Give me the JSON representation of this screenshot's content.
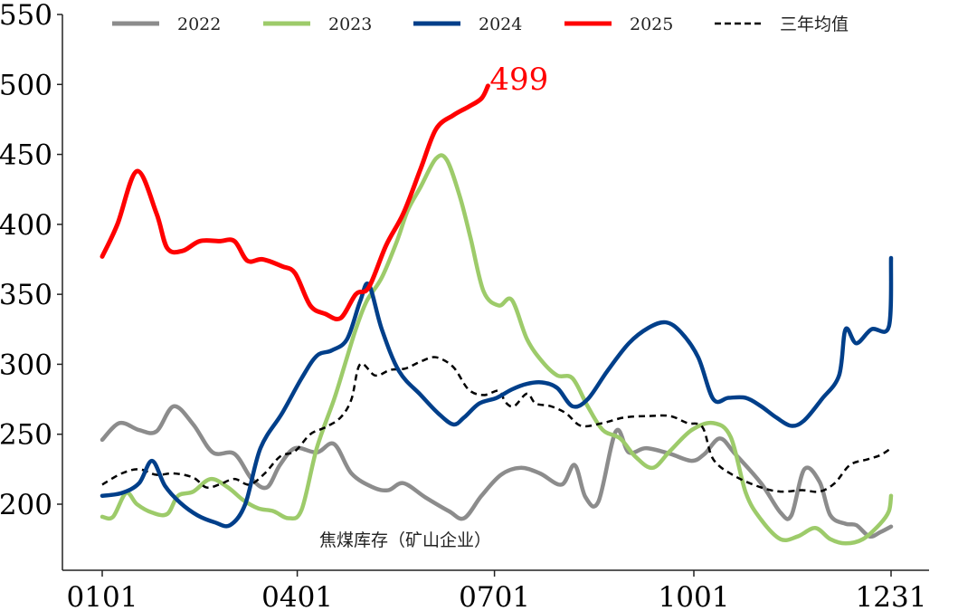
{
  "chart_data": {
    "type": "line",
    "title": "",
    "annotation": "焦煤库存（矿山企业）",
    "xlabel": "",
    "ylabel": "",
    "ylim": [
      150,
      550
    ],
    "yticks": [
      200,
      250,
      300,
      350,
      400,
      450,
      500,
      550
    ],
    "xticks": [
      "0101",
      "0401",
      "0701",
      "1001",
      "1231"
    ],
    "grid": false,
    "legend_position": "top",
    "last_value_label": {
      "series": "2025",
      "text": "499"
    },
    "series": [
      {
        "name": "2022",
        "color": "#8c8c8c",
        "dashed": false,
        "width": 4.5,
        "points": [
          [
            "0101",
            246
          ],
          [
            "0109",
            258
          ],
          [
            "0118",
            253
          ],
          [
            "0126",
            252
          ],
          [
            "0203",
            270
          ],
          [
            "0212",
            257
          ],
          [
            "0221",
            237
          ],
          [
            "0303",
            236
          ],
          [
            "0311",
            218
          ],
          [
            "0318",
            212
          ],
          [
            "0324",
            228
          ],
          [
            "0331",
            240
          ],
          [
            "0410",
            237
          ],
          [
            "0418",
            243
          ],
          [
            "0426",
            222
          ],
          [
            "0506",
            212
          ],
          [
            "0513",
            210
          ],
          [
            "0520",
            215
          ],
          [
            "0530",
            205
          ],
          [
            "0610",
            195
          ],
          [
            "0617",
            190
          ],
          [
            "0625",
            206
          ],
          [
            "0704",
            221
          ],
          [
            "0713",
            226
          ],
          [
            "0722",
            222
          ],
          [
            "0801",
            214
          ],
          [
            "0807",
            228
          ],
          [
            "0812",
            205
          ],
          [
            "0818",
            202
          ],
          [
            "0826",
            252
          ],
          [
            "0901",
            237
          ],
          [
            "0909",
            240
          ],
          [
            "0920",
            236
          ],
          [
            "0930",
            231
          ],
          [
            "1006",
            236
          ],
          [
            "1013",
            247
          ],
          [
            "1020",
            236
          ],
          [
            "1101",
            215
          ],
          [
            "1110",
            194
          ],
          [
            "1115",
            192
          ],
          [
            "1121",
            225
          ],
          [
            "1128",
            216
          ],
          [
            "1203",
            192
          ],
          [
            "1210",
            186
          ],
          [
            "1215",
            185
          ],
          [
            "1221",
            177
          ],
          [
            "1226",
            180
          ],
          [
            "1231",
            184
          ]
        ]
      },
      {
        "name": "2023",
        "color": "#9dcb6a",
        "dashed": false,
        "width": 4.5,
        "points": [
          [
            "0101",
            191
          ],
          [
            "0106",
            191
          ],
          [
            "0112",
            208
          ],
          [
            "0117",
            200
          ],
          [
            "0124",
            194
          ],
          [
            "0131",
            193
          ],
          [
            "0205",
            206
          ],
          [
            "0212",
            209
          ],
          [
            "0220",
            218
          ],
          [
            "0228",
            212
          ],
          [
            "0307",
            203
          ],
          [
            "0314",
            197
          ],
          [
            "0321",
            195
          ],
          [
            "0328",
            190
          ],
          [
            "0403",
            196
          ],
          [
            "0410",
            240
          ],
          [
            "0418",
            275
          ],
          [
            "0423",
            300
          ],
          [
            "0428",
            325
          ],
          [
            "0503",
            345
          ],
          [
            "0510",
            362
          ],
          [
            "0517",
            388
          ],
          [
            "0522",
            410
          ],
          [
            "0528",
            427
          ],
          [
            "0604",
            447
          ],
          [
            "0609",
            446
          ],
          [
            "0615",
            420
          ],
          [
            "0620",
            390
          ],
          [
            "0626",
            352
          ],
          [
            "0703",
            342
          ],
          [
            "0709",
            346
          ],
          [
            "0716",
            318
          ],
          [
            "0723",
            302
          ],
          [
            "0730",
            292
          ],
          [
            "0806",
            290
          ],
          [
            "0813",
            270
          ],
          [
            "0820",
            253
          ],
          [
            "0828",
            247
          ],
          [
            "0904",
            234
          ],
          [
            "0912",
            226
          ],
          [
            "0920",
            238
          ],
          [
            "0930",
            253
          ],
          [
            "1010",
            258
          ],
          [
            "1018",
            248
          ],
          [
            "1025",
            208
          ],
          [
            "1101",
            189
          ],
          [
            "1110",
            175
          ],
          [
            "1118",
            177
          ],
          [
            "1126",
            183
          ],
          [
            "1203",
            175
          ],
          [
            "1210",
            172
          ],
          [
            "1218",
            175
          ],
          [
            "1226",
            186
          ],
          [
            "1230",
            195
          ],
          [
            "1231",
            206
          ]
        ]
      },
      {
        "name": "2024",
        "color": "#003f8a",
        "dashed": false,
        "width": 4.5,
        "points": [
          [
            "0101",
            206
          ],
          [
            "0110",
            208
          ],
          [
            "0118",
            215
          ],
          [
            "0124",
            231
          ],
          [
            "0130",
            213
          ],
          [
            "0206",
            201
          ],
          [
            "0214",
            192
          ],
          [
            "0222",
            187
          ],
          [
            "0301",
            185
          ],
          [
            "0308",
            200
          ],
          [
            "0315",
            240
          ],
          [
            "0325",
            265
          ],
          [
            "0403",
            290
          ],
          [
            "0410",
            306
          ],
          [
            "0417",
            310
          ],
          [
            "0424",
            318
          ],
          [
            "0430",
            345
          ],
          [
            "0504",
            357
          ],
          [
            "0510",
            325
          ],
          [
            "0518",
            295
          ],
          [
            "0528",
            278
          ],
          [
            "0605",
            265
          ],
          [
            "0612",
            257
          ],
          [
            "0617",
            262
          ],
          [
            "0624",
            272
          ],
          [
            "0702",
            276
          ],
          [
            "0709",
            282
          ],
          [
            "0716",
            286
          ],
          [
            "0723",
            287
          ],
          [
            "0730",
            283
          ],
          [
            "0806",
            270
          ],
          [
            "0813",
            275
          ],
          [
            "0822",
            295
          ],
          [
            "0901",
            315
          ],
          [
            "0910",
            326
          ],
          [
            "0918",
            330
          ],
          [
            "0925",
            323
          ],
          [
            "1003",
            305
          ],
          [
            "1010",
            275
          ],
          [
            "1017",
            276
          ],
          [
            "1025",
            276
          ],
          [
            "1101",
            270
          ],
          [
            "1108",
            262
          ],
          [
            "1115",
            256
          ],
          [
            "1121",
            260
          ],
          [
            "1129",
            275
          ],
          [
            "1207",
            292
          ],
          [
            "1215",
            315
          ],
          [
            "1222",
            325
          ],
          [
            "1230",
            327
          ],
          [
            "1210",
            325
          ],
          [
            "1231",
            376
          ]
        ]
      },
      {
        "name": "2025",
        "color": "#ff0000",
        "dashed": false,
        "width": 5,
        "points": [
          [
            "0101",
            377
          ],
          [
            "0108",
            400
          ],
          [
            "0117",
            438
          ],
          [
            "0126",
            408
          ],
          [
            "0131",
            383
          ],
          [
            "0207",
            381
          ],
          [
            "0215",
            388
          ],
          [
            "0224",
            388
          ],
          [
            "0303",
            388
          ],
          [
            "0309",
            374
          ],
          [
            "0316",
            375
          ],
          [
            "0325",
            370
          ],
          [
            "0331",
            365
          ],
          [
            "0407",
            342
          ],
          [
            "0414",
            336
          ],
          [
            "0421",
            333
          ],
          [
            "0428",
            350
          ],
          [
            "0504",
            355
          ],
          [
            "0512",
            385
          ],
          [
            "0520",
            408
          ],
          [
            "0528",
            440
          ],
          [
            "0604",
            468
          ],
          [
            "0612",
            478
          ],
          [
            "0619",
            484
          ],
          [
            "0625",
            490
          ],
          [
            "0628",
            499
          ]
        ]
      },
      {
        "name": "三年均值",
        "color": "#000000",
        "dashed": true,
        "width": 2.5,
        "points": [
          [
            "0101",
            214
          ],
          [
            "0110",
            222
          ],
          [
            "0118",
            225
          ],
          [
            "0126",
            221
          ],
          [
            "0203",
            222
          ],
          [
            "0212",
            219
          ],
          [
            "0218",
            212
          ],
          [
            "0224",
            214
          ],
          [
            "0303",
            218
          ],
          [
            "0310",
            214
          ],
          [
            "0317",
            222
          ],
          [
            "0324",
            234
          ],
          [
            "0331",
            238
          ],
          [
            "0407",
            250
          ],
          [
            "0414",
            255
          ],
          [
            "0421",
            262
          ],
          [
            "0426",
            275
          ],
          [
            "0430",
            300
          ],
          [
            "0507",
            292
          ],
          [
            "0514",
            296
          ],
          [
            "0521",
            297
          ],
          [
            "0528",
            302
          ],
          [
            "0604",
            305
          ],
          [
            "0612",
            298
          ],
          [
            "0619",
            282
          ],
          [
            "0626",
            278
          ],
          [
            "0703",
            281
          ],
          [
            "0706",
            273
          ],
          [
            "0710",
            270
          ],
          [
            "0716",
            279
          ],
          [
            "0720",
            272
          ],
          [
            "0727",
            270
          ],
          [
            "0803",
            265
          ],
          [
            "0810",
            256
          ],
          [
            "0820",
            258
          ],
          [
            "0830",
            262
          ],
          [
            "0910",
            263
          ],
          [
            "0920",
            263
          ],
          [
            "0928",
            258
          ],
          [
            "1005",
            255
          ],
          [
            "1010",
            232
          ],
          [
            "1020",
            220
          ],
          [
            "1101",
            212
          ],
          [
            "1110",
            209
          ],
          [
            "1120",
            210
          ],
          [
            "1128",
            209
          ],
          [
            "1205",
            215
          ],
          [
            "1212",
            228
          ],
          [
            "1220",
            232
          ],
          [
            "1226",
            235
          ],
          [
            "1231",
            240
          ]
        ]
      }
    ]
  },
  "legend": [
    {
      "label": "2022",
      "color": "#8c8c8c",
      "dashed": false
    },
    {
      "label": "2023",
      "color": "#9dcb6a",
      "dashed": false
    },
    {
      "label": "2024",
      "color": "#003f8a",
      "dashed": false
    },
    {
      "label": "2025",
      "color": "#ff0000",
      "dashed": false
    },
    {
      "label": "三年均值",
      "color": "#000000",
      "dashed": true
    }
  ]
}
